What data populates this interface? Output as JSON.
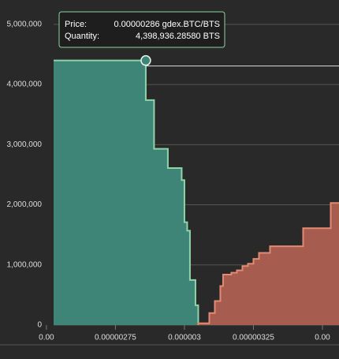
{
  "chart_data": {
    "type": "depth",
    "series": [
      {
        "color": "#3e8578",
        "line_color": "#8fd3a8",
        "x": [
          2.86e-06,
          2.89e-06,
          2.94e-06,
          2.99e-06,
          3e-06,
          3.01e-06,
          3.02e-06,
          3.04e-06,
          3.05e-06
        ],
        "values": [
          4398936.2858,
          3740000,
          2930000,
          2610000,
          2410000,
          1710000,
          1570000,
          750000,
          330000
        ]
      },
      {
        "color": "#a65d4f",
        "line_color": "#e38b72",
        "x": [
          3.05e-06,
          3.09e-06,
          3.11e-06,
          3.13e-06,
          3.14e-06,
          3.17e-06,
          3.19e-06,
          3.21e-06,
          3.23e-06,
          3.25e-06,
          3.27e-06,
          3.31e-06,
          3.43e-06,
          3.53e-06
        ],
        "values": [
          30000,
          200000,
          400000,
          650000,
          840000,
          870000,
          910000,
          980000,
          1020000,
          1100000,
          1200000,
          1310000,
          1610000,
          2030000
        ]
      }
    ],
    "xlim": [
      2.526e-06,
      3.56e-06
    ],
    "xticks": [
      {
        "value": 2.5e-06,
        "label": "0.00"
      },
      {
        "value": 2.75e-06,
        "label": "0.00000275"
      },
      {
        "value": 3e-06,
        "label": "0.000003"
      },
      {
        "value": 3.25e-06,
        "label": "0.00000325"
      },
      {
        "value": 3.5e-06,
        "label": "0.00"
      }
    ],
    "ylim": [
      0,
      5300000
    ],
    "yticks": [
      0,
      {
        "value": 1000000,
        "label": "1,000,000"
      },
      {
        "value": 2000000,
        "label": "2,000,000"
      },
      {
        "value": 3000000,
        "label": "3,000,000"
      },
      {
        "value": 4000000,
        "label": "4,000,000"
      },
      {
        "value": 5000000,
        "label": "5,000,000"
      }
    ],
    "grid": true,
    "tooltip": {
      "price_label": "Price:",
      "price": "0.00000286 gdex.BTC/BTS",
      "quantity_label": "Quantity:",
      "quantity": "4,398,936.28580 BTS"
    }
  }
}
